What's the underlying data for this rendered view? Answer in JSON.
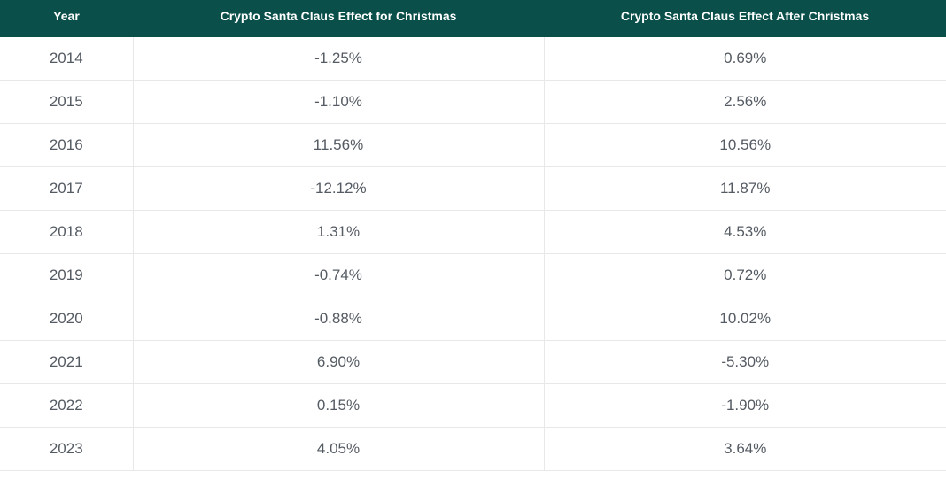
{
  "table": {
    "header": [
      "Year",
      "Crypto Santa Claus Effect for Christmas",
      "Crypto Santa Claus Effect After Christmas"
    ],
    "rows": [
      [
        "2014",
        "-1.25%",
        "0.69%"
      ],
      [
        "2015",
        "-1.10%",
        "2.56%"
      ],
      [
        "2016",
        "11.56%",
        "10.56%"
      ],
      [
        "2017",
        "-12.12%",
        "11.87%"
      ],
      [
        "2018",
        "1.31%",
        "4.53%"
      ],
      [
        "2019",
        "-0.74%",
        "0.72%"
      ],
      [
        "2020",
        "-0.88%",
        "10.02%"
      ],
      [
        "2021",
        "6.90%",
        "-5.30%"
      ],
      [
        "2022",
        "0.15%",
        "-1.90%"
      ],
      [
        "2023",
        "4.05%",
        "3.64%"
      ]
    ]
  }
}
